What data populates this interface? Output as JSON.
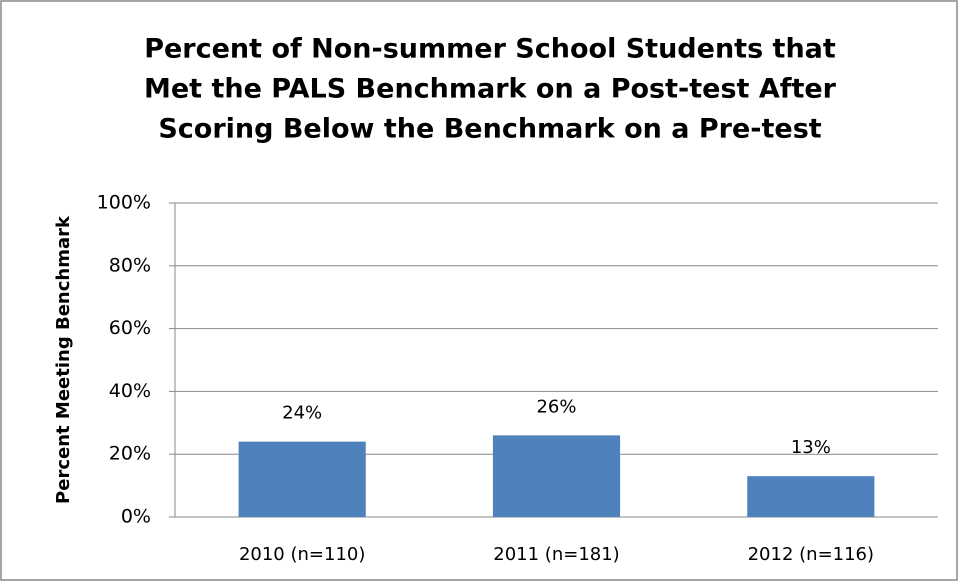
{
  "chart_data": {
    "type": "bar",
    "title": [
      "Percent of Non-summer School Students that",
      "Met the PALS Benchmark on a Post-test After",
      "Scoring Below the Benchmark on a Pre-test"
    ],
    "y_label": "Percent Meeting Benchmark",
    "categories": [
      "2010 (n=110)",
      "2011 (n=181)",
      "2012 (n=116)"
    ],
    "values": [
      24,
      26,
      13
    ],
    "value_labels": [
      "24%",
      "26%",
      "13%"
    ],
    "color": "#4f81bd",
    "ylim": [
      0,
      100
    ],
    "yticks": [
      {
        "value": 0,
        "label": "0%"
      },
      {
        "value": 20,
        "label": "20%"
      },
      {
        "value": 40,
        "label": "40%"
      },
      {
        "value": 60,
        "label": "60%"
      },
      {
        "value": 80,
        "label": "80%"
      },
      {
        "value": 100,
        "label": "100%"
      }
    ],
    "grid": true
  }
}
